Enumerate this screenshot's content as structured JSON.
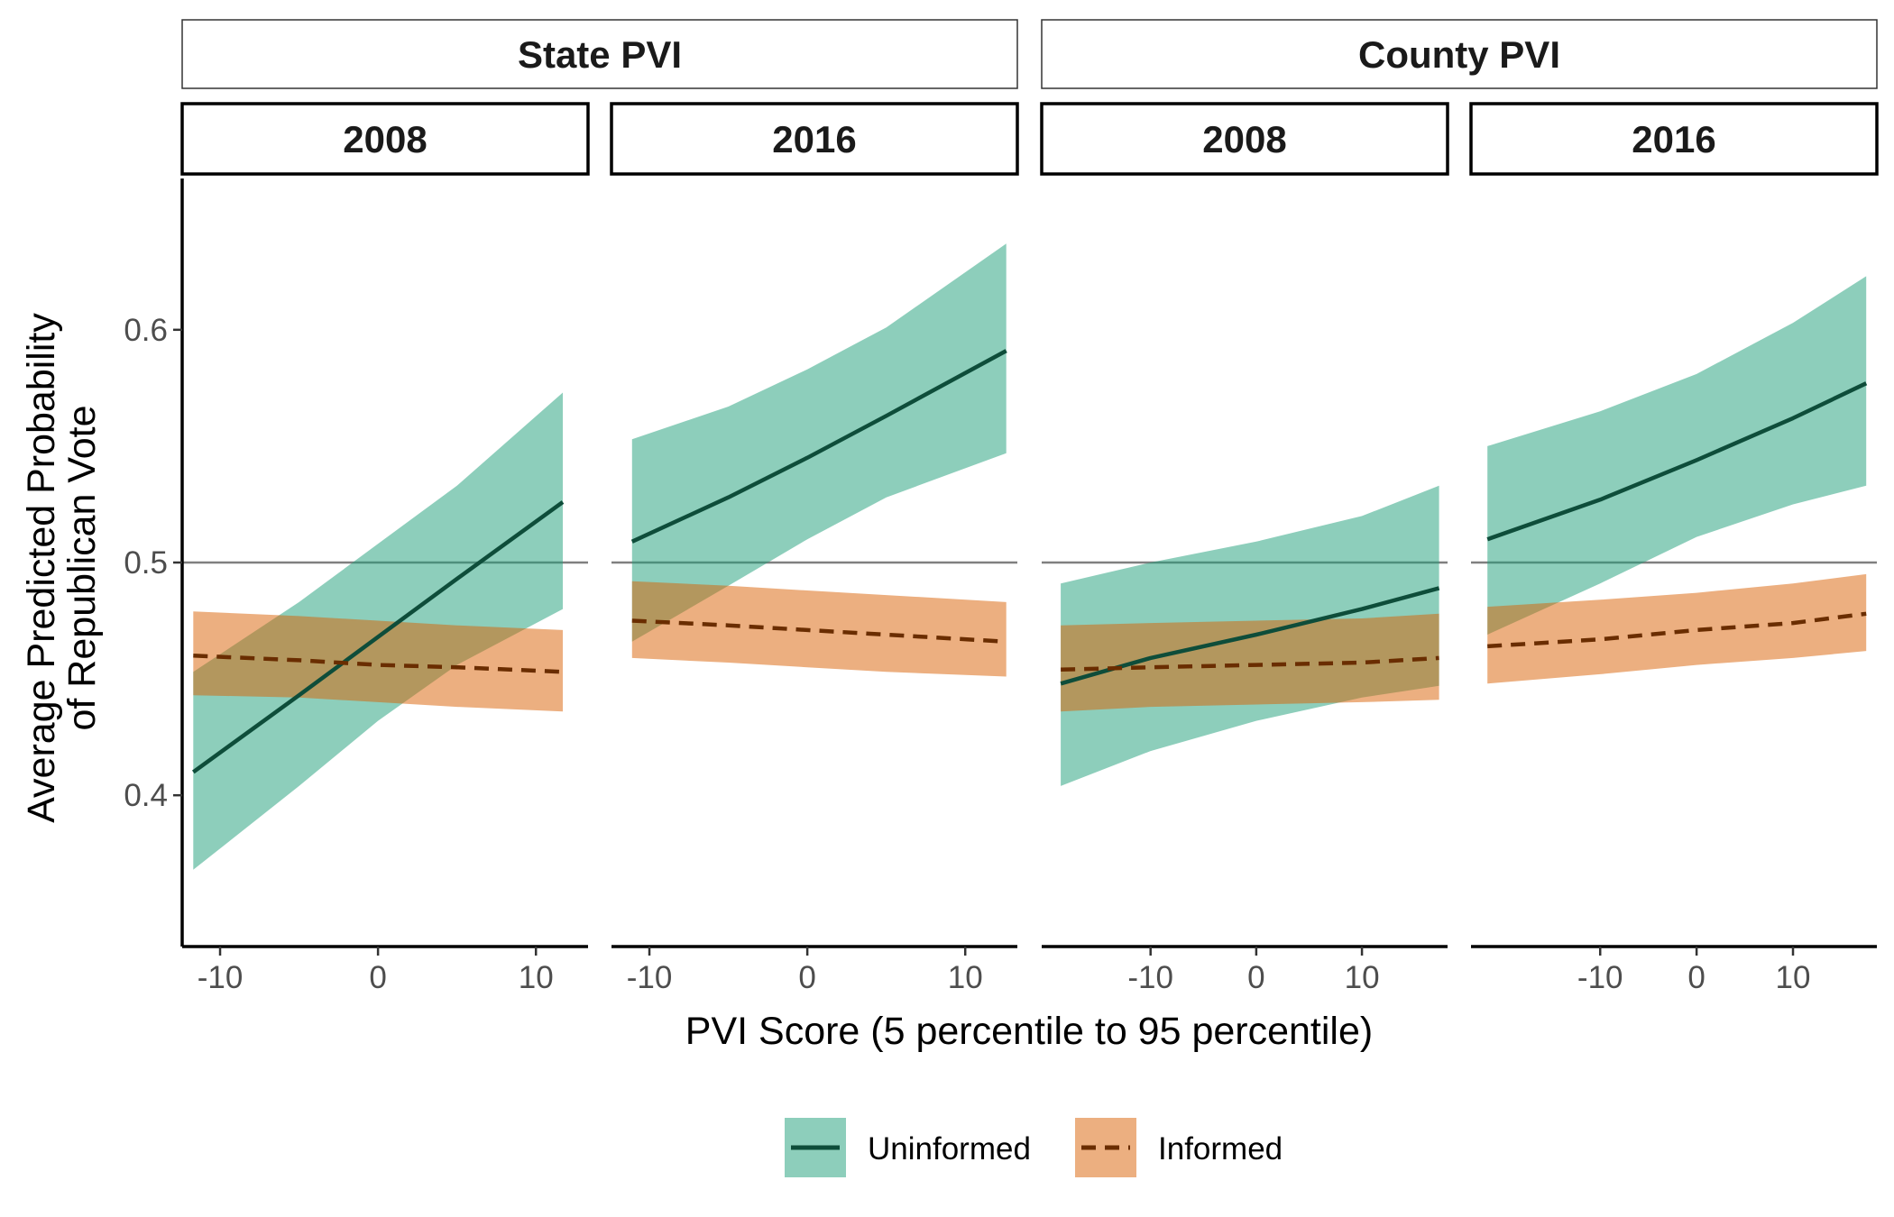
{
  "chart_data": {
    "type": "line",
    "ylabel_line1": "Average Predicted Probability",
    "ylabel_line2": "of Republican Vote",
    "xlabel": "PVI Score (5 percentile to 95 percentile)",
    "ylim": [
      0.335,
      0.665
    ],
    "yticks": [
      0.4,
      0.5,
      0.6
    ],
    "ytick_labels": [
      "0.4",
      "0.5",
      "0.6"
    ],
    "reference_line_y": 0.5,
    "groups": [
      {
        "label": "State PVI"
      },
      {
        "label": "County PVI"
      }
    ],
    "colors": {
      "uninformed_line": "#0e4d3a",
      "uninformed_band": "#1b9e77",
      "informed_line": "#6a2d00",
      "informed_band": "#d95f02",
      "reference_line": "#808080"
    },
    "legend": [
      {
        "key": "uninformed",
        "label": "Uninformed",
        "linestyle": "solid"
      },
      {
        "key": "informed",
        "label": "Informed",
        "linestyle": "dashed"
      }
    ],
    "panels": [
      {
        "group": "State PVI",
        "year": "2008",
        "xlim": [
          -12.4,
          13.3
        ],
        "xticks": [
          -10,
          0,
          10
        ],
        "xtick_labels": [
          "-10",
          "0",
          "10"
        ],
        "x": [
          -11.7,
          -5,
          0,
          5,
          11.7
        ],
        "uninformed": {
          "fit": [
            0.41,
            0.443,
            0.468,
            0.493,
            0.526
          ],
          "lower": [
            0.368,
            0.404,
            0.432,
            0.456,
            0.48
          ],
          "upper": [
            0.453,
            0.483,
            0.508,
            0.533,
            0.573
          ]
        },
        "informed": {
          "fit": [
            0.46,
            0.458,
            0.456,
            0.455,
            0.453
          ],
          "lower": [
            0.443,
            0.442,
            0.44,
            0.438,
            0.436
          ],
          "upper": [
            0.479,
            0.477,
            0.475,
            0.473,
            0.471
          ]
        }
      },
      {
        "group": "State PVI",
        "year": "2016",
        "xlim": [
          -12.4,
          13.3
        ],
        "xticks": [
          -10,
          0,
          10
        ],
        "xtick_labels": [
          "-10",
          "0",
          "10"
        ],
        "x": [
          -11.1,
          -5,
          0,
          5,
          12.6
        ],
        "uninformed": {
          "fit": [
            0.509,
            0.528,
            0.545,
            0.563,
            0.591
          ],
          "lower": [
            0.466,
            0.49,
            0.51,
            0.528,
            0.547
          ],
          "upper": [
            0.553,
            0.567,
            0.583,
            0.601,
            0.637
          ]
        },
        "informed": {
          "fit": [
            0.475,
            0.473,
            0.471,
            0.469,
            0.466
          ],
          "lower": [
            0.459,
            0.457,
            0.455,
            0.453,
            0.451
          ],
          "upper": [
            0.492,
            0.49,
            0.488,
            0.486,
            0.483
          ]
        }
      },
      {
        "group": "County PVI",
        "year": "2008",
        "xlim": [
          -20.3,
          18.1
        ],
        "xticks": [
          -10,
          0,
          10
        ],
        "xtick_labels": [
          "-10",
          "0",
          "10"
        ],
        "x": [
          -18.5,
          -10,
          0,
          10,
          17.3
        ],
        "uninformed": {
          "fit": [
            0.448,
            0.459,
            0.469,
            0.48,
            0.489
          ],
          "lower": [
            0.404,
            0.419,
            0.432,
            0.442,
            0.447
          ],
          "upper": [
            0.491,
            0.5,
            0.509,
            0.52,
            0.533
          ]
        },
        "informed": {
          "fit": [
            0.454,
            0.455,
            0.456,
            0.457,
            0.459
          ],
          "lower": [
            0.436,
            0.438,
            0.439,
            0.44,
            0.441
          ],
          "upper": [
            0.473,
            0.474,
            0.475,
            0.476,
            0.478
          ]
        }
      },
      {
        "group": "County PVI",
        "year": "2016",
        "xlim": [
          -23.4,
          18.7
        ],
        "xticks": [
          -10,
          0,
          10
        ],
        "xtick_labels": [
          "-10",
          "0",
          "10"
        ],
        "x": [
          -21.7,
          -10,
          0,
          10,
          17.6
        ],
        "uninformed": {
          "fit": [
            0.51,
            0.527,
            0.544,
            0.562,
            0.577
          ],
          "lower": [
            0.469,
            0.491,
            0.511,
            0.525,
            0.533
          ],
          "upper": [
            0.55,
            0.565,
            0.581,
            0.603,
            0.623
          ]
        },
        "informed": {
          "fit": [
            0.464,
            0.467,
            0.471,
            0.474,
            0.478
          ],
          "lower": [
            0.448,
            0.452,
            0.456,
            0.459,
            0.462
          ],
          "upper": [
            0.481,
            0.484,
            0.487,
            0.491,
            0.495
          ]
        }
      }
    ]
  }
}
